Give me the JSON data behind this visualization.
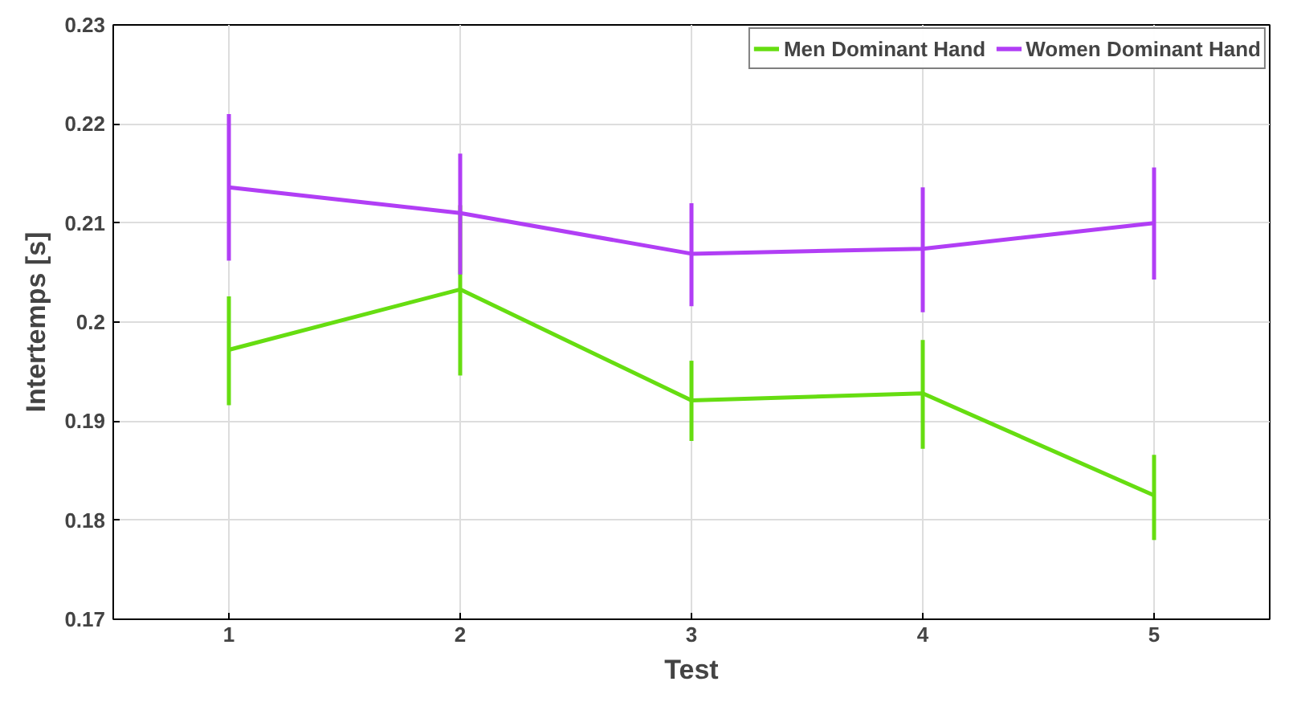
{
  "chart_data": {
    "type": "line",
    "xlabel": "Test",
    "ylabel": "Intertemps [s]",
    "x": [
      1,
      2,
      3,
      4,
      5
    ],
    "xlim": [
      0.5,
      5.5
    ],
    "xticks": [
      1,
      2,
      3,
      4,
      5
    ],
    "ylim": [
      0.17,
      0.23
    ],
    "yticks": [
      0.17,
      0.18,
      0.19,
      {
        "value": 0.2,
        "label": "0.2"
      },
      0.21,
      0.22,
      0.23
    ],
    "grid": true,
    "legend": "top right",
    "marker": "none",
    "line_style": "solid",
    "series": [
      {
        "name": "Men Dominant Hand",
        "color": "#66dd11",
        "values": [
          0.1972,
          0.2033,
          0.1921,
          0.1928,
          0.1825
        ],
        "errors": [
          [
            0.1916,
            0.2026
          ],
          [
            0.1946,
            0.2118
          ],
          [
            0.188,
            0.1961
          ],
          [
            0.1872,
            0.1982
          ],
          [
            0.178,
            0.1866
          ]
        ]
      },
      {
        "name": "Women Dominant Hand",
        "color": "#b13ef5",
        "values": [
          0.2136,
          0.211,
          0.2069,
          0.2074,
          0.21
        ],
        "errors": [
          [
            0.2062,
            0.221
          ],
          [
            0.2048,
            0.217
          ],
          [
            0.2016,
            0.212
          ],
          [
            0.201,
            0.2136
          ],
          [
            0.2043,
            0.2156
          ]
        ]
      }
    ]
  }
}
